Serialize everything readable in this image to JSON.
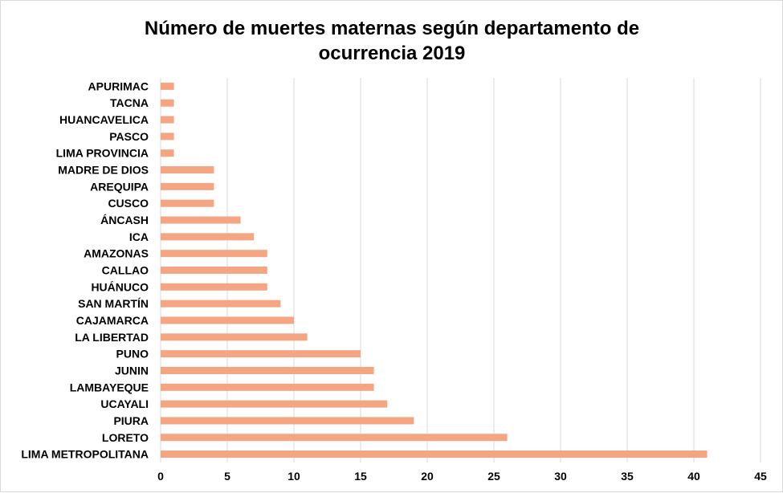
{
  "chart_data": {
    "type": "bar",
    "orientation": "horizontal",
    "title_lines": [
      "Número de muertes maternas según departamento de",
      "ocurrencia 2019"
    ],
    "categories": [
      "APURIMAC",
      "TACNA",
      "HUANCAVELICA",
      "PASCO",
      "LIMA PROVINCIA",
      "MADRE DE DIOS",
      "AREQUIPA",
      "CUSCO",
      "ÁNCASH",
      "ICA",
      "AMAZONAS",
      "CALLAO",
      "HUÁNUCO",
      "SAN MARTÍN",
      "CAJAMARCA",
      "LA LIBERTAD",
      "PUNO",
      "JUNIN",
      "LAMBAYEQUE",
      "UCAYALI",
      "PIURA",
      "LORETO",
      "LIMA METROPOLITANA"
    ],
    "values": [
      1,
      1,
      1,
      1,
      1,
      4,
      4,
      4,
      6,
      7,
      8,
      8,
      8,
      9,
      10,
      11,
      15,
      16,
      16,
      17,
      19,
      26,
      41
    ],
    "xlim": [
      0,
      45
    ],
    "xticks": [
      0,
      5,
      10,
      15,
      20,
      25,
      30,
      35,
      40,
      45
    ],
    "grid": "vertical",
    "legend": "none",
    "bar_color": "#f4a582"
  }
}
